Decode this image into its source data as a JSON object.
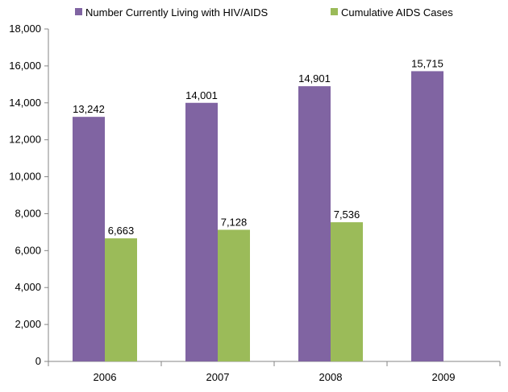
{
  "chart_data": {
    "type": "bar",
    "categories": [
      "2006",
      "2007",
      "2008",
      "2009"
    ],
    "series": [
      {
        "name": "Number Currently Living with HIV/AIDS",
        "color": "#8064a2",
        "values": [
          13242,
          14001,
          14901,
          15715
        ],
        "labels": [
          "13,242",
          "14,001",
          "14,901",
          "15,715"
        ]
      },
      {
        "name": "Cumulative AIDS Cases",
        "color": "#9bbb59",
        "values": [
          6663,
          7128,
          7536,
          null
        ],
        "labels": [
          "6,663",
          "7,128",
          "7,536",
          ""
        ]
      }
    ],
    "ylim": [
      0,
      18000
    ],
    "yticks": [
      0,
      2000,
      4000,
      6000,
      8000,
      10000,
      12000,
      14000,
      16000,
      18000
    ],
    "ytick_labels": [
      "0",
      "2,000",
      "4,000",
      "6,000",
      "8,000",
      "10,000",
      "12,000",
      "14,000",
      "16,000",
      "18,000"
    ],
    "grid": false,
    "legend_position": "top",
    "title": "",
    "xlabel": "",
    "ylabel": ""
  }
}
